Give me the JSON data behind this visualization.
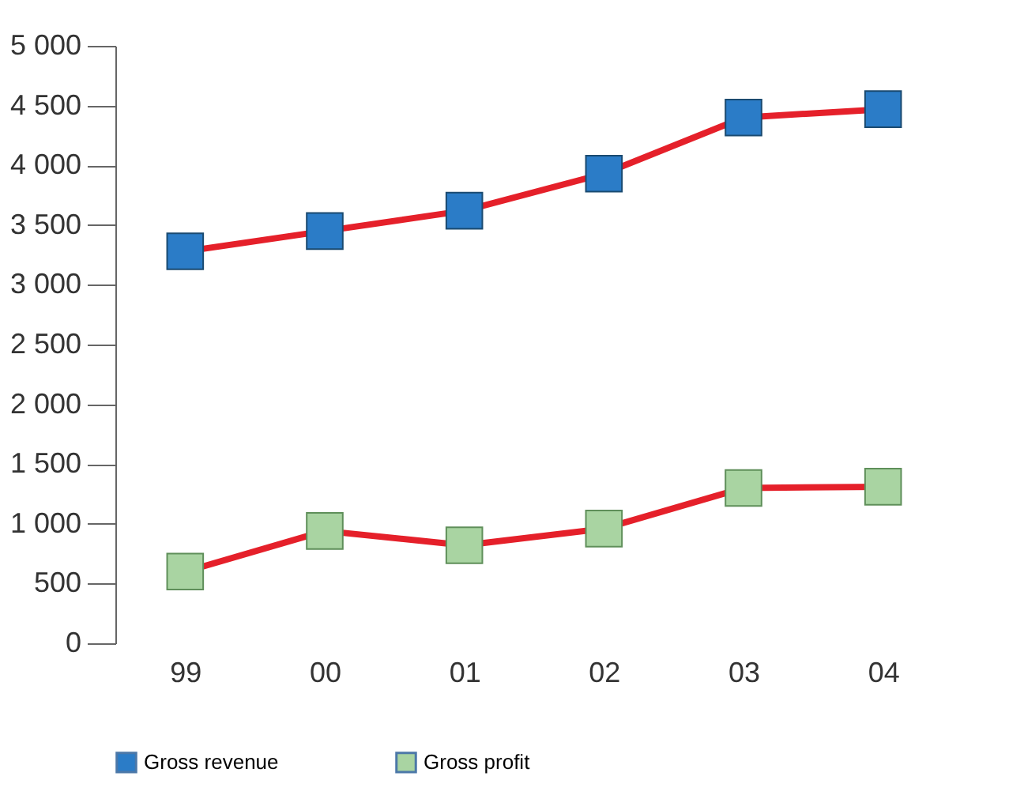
{
  "chart_data": {
    "type": "line",
    "categories": [
      "99",
      "00",
      "01",
      "02",
      "03",
      "04"
    ],
    "series": [
      {
        "name": "Gross revenue",
        "color": "#e5202a",
        "colors": [
          "#2b7cc7",
          "#2b7cc7",
          "#2b7cc7",
          "#2b7cc7",
          "#2b7cc7",
          "#2b7cc7"
        ],
        "values": [
          3280,
          3450,
          3620,
          3930,
          4400,
          4470
        ]
      },
      {
        "name": "Gross profit",
        "color": "#e5202a",
        "colors": [
          "#a9d4a2",
          "#a9d4a2",
          "#a9d4a2",
          "#a9d4a2",
          "#a9d4a2",
          "#a9d4a2"
        ],
        "values": [
          600,
          940,
          820,
          960,
          1300,
          1310
        ]
      }
    ],
    "ylim": [
      0,
      5000
    ],
    "yticks": [
      0,
      500,
      {
        "value": 1000,
        "label": "1 000"
      },
      {
        "value": 1500,
        "label": "1 500"
      },
      {
        "value": 2000,
        "label": "2 000"
      },
      {
        "value": 2500,
        "label": "2 500"
      },
      {
        "value": 3000,
        "label": "3 000"
      },
      {
        "value": 3500,
        "label": "3 500"
      },
      {
        "value": 4000,
        "label": "4 000"
      },
      {
        "value": 4500,
        "label": "4 500"
      },
      {
        "value": 5000,
        "label": "5 000"
      }
    ],
    "marker": "square",
    "line_style": "solid",
    "grid": false,
    "legend": "bottom"
  }
}
